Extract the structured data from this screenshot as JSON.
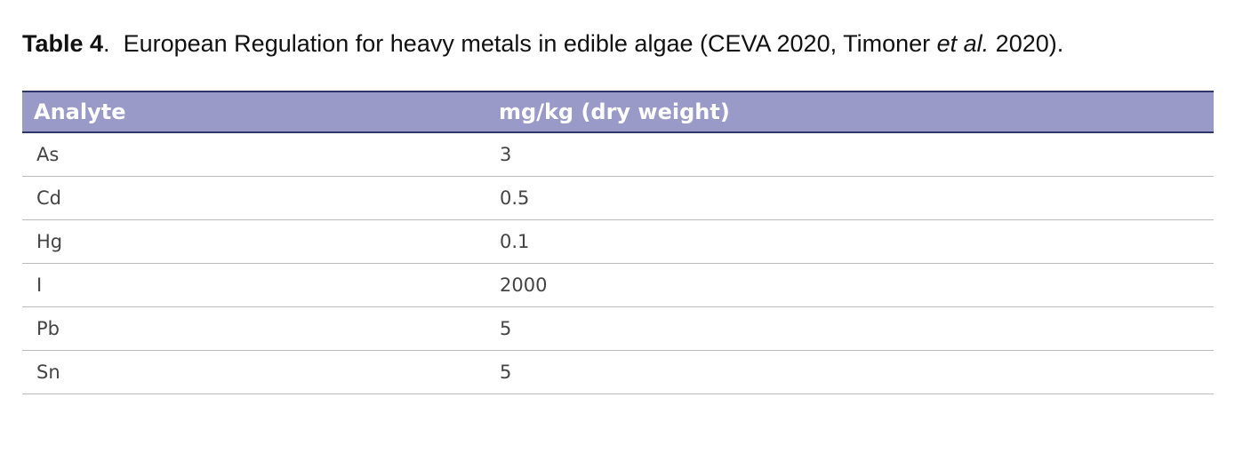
{
  "caption": {
    "label": "Table 4",
    "label_end": ".",
    "text": "European Regulation for heavy metals in edible algae (CEVA 2020, Timoner ",
    "italic": "et al.",
    "text_end": " 2020)."
  },
  "table": {
    "header": [
      "Analyte",
      "mg/kg (dry weight)"
    ],
    "rows": [
      [
        "As",
        "3"
      ],
      [
        "Cd",
        "0.5"
      ],
      [
        "Hg",
        "0.1"
      ],
      [
        "I",
        "2000"
      ],
      [
        "Pb",
        "5"
      ],
      [
        "Sn",
        "5"
      ]
    ]
  }
}
